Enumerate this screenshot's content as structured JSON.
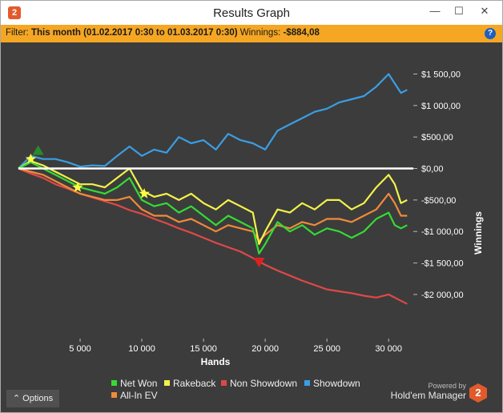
{
  "app": {
    "title": "Results Graph",
    "logo_text": "2"
  },
  "filter": {
    "label": "Filter:",
    "period": "This month (01.02.2017 0:30 to 01.03.2017 0:30)",
    "winnings_label": "Winnings:",
    "winnings_value": "-$884,08"
  },
  "window_controls": {
    "minimize": "—",
    "maximize": "☐",
    "close": "✕"
  },
  "options_label": "Options",
  "branding": {
    "powered_by": "Powered by",
    "name": "Hold'em Manager",
    "logo_text": "2"
  },
  "colors": {
    "filter_bar": "#f5a623",
    "background": "#3c3c3c",
    "net_won": "#33dd33",
    "rakeback": "#f2f24a",
    "non_showdown": "#e04848",
    "showdown": "#3a9ee4",
    "all_in_ev": "#f08a3a",
    "zero_line": "#ffffff"
  },
  "chart_data": {
    "type": "line",
    "xlabel": "Hands",
    "ylabel": "Winnings",
    "xlim": [
      0,
      32000
    ],
    "ylim": [
      -2700,
      1900
    ],
    "x_ticks": [
      5000,
      10000,
      15000,
      20000,
      25000,
      30000
    ],
    "x_tick_labels": [
      "5 000",
      "10 000",
      "15 000",
      "20 000",
      "25 000",
      "30 000"
    ],
    "y_ticks": [
      1500,
      1000,
      500,
      0,
      -500,
      -1000,
      -1500,
      -2000
    ],
    "y_tick_labels": [
      "$1 500,00",
      "$1 000,00",
      "$500,00",
      "$0,00",
      "-$500,00",
      "-$1 000,00",
      "-$1 500,00",
      "-$2 000,00"
    ],
    "grid": false,
    "legend_position": "bottom",
    "series": [
      {
        "name": "Net Won",
        "color": "#33dd33",
        "x": [
          0,
          1000,
          2000,
          3000,
          4000,
          5000,
          6000,
          7000,
          8000,
          9000,
          10000,
          11000,
          12000,
          13000,
          14000,
          15000,
          16000,
          17000,
          18000,
          19000,
          19500,
          20000,
          21000,
          22000,
          23000,
          24000,
          25000,
          26000,
          27000,
          28000,
          29000,
          30000,
          30500,
          31000,
          31500
        ],
        "y": [
          0,
          100,
          0,
          -100,
          -200,
          -300,
          -350,
          -400,
          -300,
          -150,
          -500,
          -600,
          -550,
          -700,
          -600,
          -750,
          -900,
          -750,
          -850,
          -950,
          -1350,
          -1200,
          -850,
          -1000,
          -900,
          -1050,
          -950,
          -1000,
          -1100,
          -1000,
          -800,
          -700,
          -900,
          -950,
          -900
        ]
      },
      {
        "name": "Rakeback",
        "color": "#f2f24a",
        "x": [
          0,
          1000,
          2000,
          3000,
          4000,
          5000,
          6000,
          7000,
          8000,
          9000,
          10000,
          11000,
          12000,
          13000,
          14000,
          15000,
          16000,
          17000,
          18000,
          19000,
          19500,
          20000,
          21000,
          22000,
          23000,
          24000,
          25000,
          26000,
          27000,
          28000,
          29000,
          30000,
          30500,
          31000,
          31500
        ],
        "y": [
          0,
          120,
          50,
          -50,
          -150,
          -250,
          -250,
          -300,
          -150,
          0,
          -350,
          -450,
          -400,
          -500,
          -400,
          -550,
          -650,
          -500,
          -600,
          -700,
          -1200,
          -1000,
          -650,
          -700,
          -550,
          -650,
          -500,
          -500,
          -650,
          -550,
          -300,
          -100,
          -250,
          -550,
          -500
        ]
      },
      {
        "name": "Non Showdown",
        "color": "#e04848",
        "x": [
          0,
          1000,
          2000,
          3000,
          4000,
          5000,
          6000,
          7000,
          8000,
          9000,
          10000,
          11000,
          12000,
          13000,
          14000,
          15000,
          16000,
          17000,
          18000,
          19000,
          20000,
          21000,
          22000,
          23000,
          24000,
          25000,
          26000,
          27000,
          28000,
          29000,
          30000,
          31000,
          31500
        ],
        "y": [
          0,
          -80,
          -150,
          -250,
          -320,
          -400,
          -460,
          -520,
          -580,
          -660,
          -720,
          -800,
          -870,
          -950,
          -1020,
          -1100,
          -1180,
          -1250,
          -1320,
          -1420,
          -1530,
          -1620,
          -1700,
          -1780,
          -1850,
          -1920,
          -1950,
          -1980,
          -2020,
          -2050,
          -2000,
          -2100,
          -2150
        ]
      },
      {
        "name": "Showdown",
        "color": "#3a9ee4",
        "x": [
          0,
          1000,
          2000,
          3000,
          4000,
          5000,
          6000,
          7000,
          8000,
          9000,
          10000,
          11000,
          12000,
          13000,
          14000,
          15000,
          16000,
          17000,
          18000,
          19000,
          20000,
          21000,
          22000,
          23000,
          24000,
          25000,
          26000,
          27000,
          28000,
          29000,
          30000,
          31000,
          31500
        ],
        "y": [
          0,
          200,
          150,
          150,
          100,
          30,
          50,
          40,
          200,
          350,
          200,
          300,
          250,
          500,
          400,
          450,
          300,
          550,
          450,
          400,
          300,
          600,
          700,
          800,
          900,
          950,
          1050,
          1100,
          1150,
          1300,
          1500,
          1200,
          1250
        ]
      },
      {
        "name": "All-In EV",
        "color": "#f08a3a",
        "x": [
          0,
          1000,
          2000,
          3000,
          4000,
          5000,
          6000,
          7000,
          8000,
          9000,
          10000,
          11000,
          12000,
          13000,
          14000,
          15000,
          16000,
          17000,
          18000,
          19000,
          19500,
          20000,
          21000,
          22000,
          23000,
          24000,
          25000,
          26000,
          27000,
          28000,
          29000,
          30000,
          30500,
          31000,
          31500
        ],
        "y": [
          0,
          -50,
          -100,
          -200,
          -300,
          -400,
          -450,
          -500,
          -500,
          -450,
          -650,
          -750,
          -750,
          -850,
          -800,
          -900,
          -1000,
          -900,
          -950,
          -1000,
          -1150,
          -1050,
          -900,
          -950,
          -850,
          -900,
          -800,
          -800,
          -850,
          -750,
          -650,
          -400,
          -550,
          -750,
          -750
        ]
      }
    ],
    "markers": [
      {
        "type": "star",
        "color": "#ffff44",
        "x": 1000,
        "y": 150
      },
      {
        "type": "star",
        "color": "#ffff44",
        "x": 4800,
        "y": -300
      },
      {
        "type": "star",
        "color": "#ffff44",
        "x": 10200,
        "y": -400
      },
      {
        "type": "triangle-up",
        "color": "#2a8a2a",
        "x": 1600,
        "y": 280
      },
      {
        "type": "triangle-down",
        "color": "#e02020",
        "x": 19500,
        "y": -1480
      }
    ]
  }
}
